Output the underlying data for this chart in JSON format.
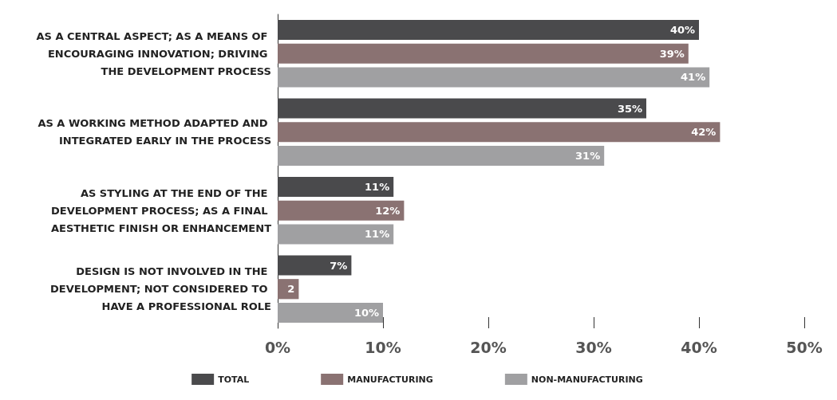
{
  "chart_data": {
    "type": "bar",
    "orientation": "horizontal",
    "categories": [
      "AS A CENTRAL ASPECT; AS A MEANS OF ENCOURAGING INNOVATION; DRIVING THE DEVELOPMENT PROCESS",
      "AS A WORKING METHOD ADAPTED AND INTEGRATED EARLY IN THE PROCESS",
      "AS STYLING AT THE END OF THE DEVELOPMENT PROCESS; AS A FINAL AESTHETIC FINISH OR ENHANCEMENT",
      "DESIGN IS NOT INVOLVED IN THE DEVELOPMENT; NOT CONSIDERED TO HAVE A PROFESSIONAL ROLE"
    ],
    "series": [
      {
        "name": "TOTAL",
        "color": "#4a4a4c",
        "values": [
          40,
          35,
          11,
          7
        ],
        "value_labels": [
          "40%",
          "35%",
          "11%",
          "7%"
        ]
      },
      {
        "name": "MANUFACTURING",
        "color": "#8a7272",
        "values": [
          39,
          42,
          12,
          2
        ],
        "value_labels": [
          "39%",
          "42%",
          "12%",
          "2"
        ]
      },
      {
        "name": "NON-MANUFACTURING",
        "color": "#a0a0a2",
        "values": [
          41,
          31,
          11,
          10
        ],
        "value_labels": [
          "41%",
          "31%",
          "11%",
          "10%"
        ]
      }
    ],
    "xlim": [
      0,
      50
    ],
    "xticks": [
      {
        "value": 0,
        "label": "0%"
      },
      {
        "value": 10,
        "label": "10%"
      },
      {
        "value": 20,
        "label": "20%"
      },
      {
        "value": 30,
        "label": "30%"
      },
      {
        "value": 40,
        "label": "40%"
      },
      {
        "value": 50,
        "label": "50%"
      }
    ],
    "grid": false,
    "legend": "bottom"
  }
}
